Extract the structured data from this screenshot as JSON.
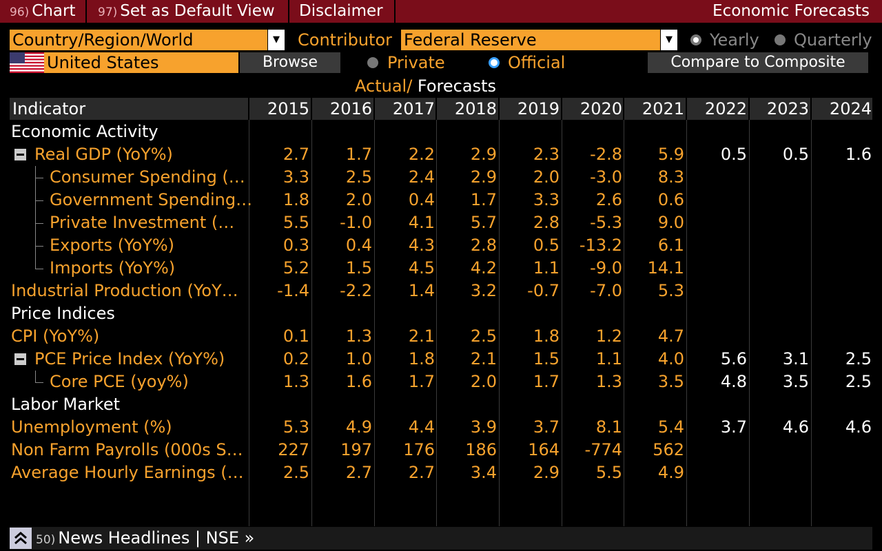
{
  "topbar": {
    "buttons": [
      {
        "num": "96)",
        "label": "Chart"
      },
      {
        "num": "97)",
        "label": "Set as Default View"
      },
      {
        "num": "",
        "label": "Disclaimer"
      }
    ],
    "title": "Economic Forecasts"
  },
  "controls": {
    "region_select": "Country/Region/World",
    "country": "United States",
    "browse_label": "Browse",
    "contributor_label": "Contributor",
    "contributor_select": "Federal Reserve",
    "yearly_label": "Yearly",
    "quarterly_label": "Quarterly",
    "private_label": "Private",
    "official_label": "Official",
    "compare_label": "Compare to Composite",
    "actual_label": "Actual/",
    "forecasts_label": "Forecasts"
  },
  "table": {
    "indicator_header": "Indicator",
    "years": [
      "2015",
      "2016",
      "2017",
      "2018",
      "2019",
      "2020",
      "2021",
      "2022",
      "2023",
      "2024"
    ],
    "rows": [
      {
        "label": "Economic Activity",
        "section": true
      },
      {
        "label": "Real GDP (YoY%)",
        "level": 0,
        "collapse": true,
        "values": [
          "2.7",
          "1.7",
          "2.2",
          "2.9",
          "2.3",
          "-2.8",
          "5.9",
          "0.5",
          "0.5",
          "1.6"
        ]
      },
      {
        "label": "Consumer Spending (…",
        "level": 1,
        "values": [
          "3.3",
          "2.5",
          "2.4",
          "2.9",
          "2.0",
          "-3.0",
          "8.3",
          "",
          "",
          ""
        ]
      },
      {
        "label": "Government Spending…",
        "level": 1,
        "values": [
          "1.8",
          "2.0",
          "0.4",
          "1.7",
          "3.3",
          "2.6",
          "0.6",
          "",
          "",
          ""
        ]
      },
      {
        "label": "Private Investment (…",
        "level": 1,
        "values": [
          "5.5",
          "-1.0",
          "4.1",
          "5.7",
          "2.8",
          "-5.3",
          "9.0",
          "",
          "",
          ""
        ]
      },
      {
        "label": "Exports (YoY%)",
        "level": 1,
        "values": [
          "0.3",
          "0.4",
          "4.3",
          "2.8",
          "0.5",
          "-13.2",
          "6.1",
          "",
          "",
          ""
        ]
      },
      {
        "label": "Imports (YoY%)",
        "level": 1,
        "last": true,
        "values": [
          "5.2",
          "1.5",
          "4.5",
          "4.2",
          "1.1",
          "-9.0",
          "14.1",
          "",
          "",
          ""
        ]
      },
      {
        "label": "Industrial Production (YoY…",
        "level": -1,
        "values": [
          "-1.4",
          "-2.2",
          "1.4",
          "3.2",
          "-0.7",
          "-7.0",
          "5.3",
          "",
          "",
          ""
        ]
      },
      {
        "label": "Price Indices",
        "section": true
      },
      {
        "label": "CPI (YoY%)",
        "level": -1,
        "values": [
          "0.1",
          "1.3",
          "2.1",
          "2.5",
          "1.8",
          "1.2",
          "4.7",
          "",
          "",
          ""
        ]
      },
      {
        "label": "PCE Price Index (YoY%)",
        "level": 0,
        "collapse": true,
        "values": [
          "0.2",
          "1.0",
          "1.8",
          "2.1",
          "1.5",
          "1.1",
          "4.0",
          "5.6",
          "3.1",
          "2.5"
        ]
      },
      {
        "label": "Core PCE (yoy%)",
        "level": 1,
        "last": true,
        "values": [
          "1.3",
          "1.6",
          "1.7",
          "2.0",
          "1.7",
          "1.3",
          "3.5",
          "4.8",
          "3.5",
          "2.5"
        ]
      },
      {
        "label": "Labor Market",
        "section": true
      },
      {
        "label": "Unemployment (%)",
        "level": -1,
        "values": [
          "5.3",
          "4.9",
          "4.4",
          "3.9",
          "3.7",
          "8.1",
          "5.4",
          "3.7",
          "4.6",
          "4.6"
        ]
      },
      {
        "label": "Non Farm Payrolls (000s S…",
        "level": -1,
        "values": [
          "227",
          "197",
          "176",
          "186",
          "164",
          "-774",
          "562",
          "",
          "",
          ""
        ]
      },
      {
        "label": "Average Hourly Earnings (…",
        "level": -1,
        "values": [
          "2.5",
          "2.7",
          "2.7",
          "3.4",
          "2.9",
          "5.5",
          "4.9",
          "",
          "",
          ""
        ]
      }
    ]
  },
  "footer": {
    "num": "50)",
    "text": "News Headlines | NSE »"
  },
  "colors": {
    "accent": "#f7a22d",
    "topbar": "#7a0d1a",
    "forecast_text": "#ffffff"
  }
}
